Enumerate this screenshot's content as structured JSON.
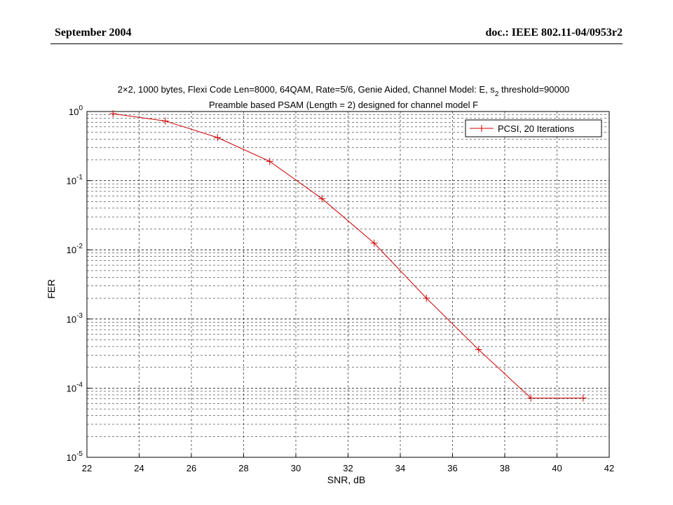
{
  "header": {
    "date": "September 2004",
    "doc_id": "doc.: IEEE 802.11-04/0953r2"
  },
  "chart_data": {
    "type": "line",
    "title_line1": "2×2, 1000 bytes, Flexi Code Len=8000, 64QAM, Rate=5/6, Genie Aided, Channel Model: E, s",
    "title_line1_sub": "2",
    "title_line1_tail": " threshold=90000",
    "title_line2": "Preamble based PSAM (Length = 2) designed for channel model F",
    "xlabel": "SNR, dB",
    "ylabel": "FER",
    "xlim": [
      22,
      42
    ],
    "ylim": [
      1e-05,
      1
    ],
    "yscale": "log",
    "grid": true,
    "x_ticks": [
      22,
      24,
      26,
      28,
      30,
      32,
      34,
      36,
      38,
      40,
      42
    ],
    "y_tick_exponents": [
      0,
      -1,
      -2,
      -3,
      -4,
      -5
    ],
    "y_tick_base": "10",
    "legend_position": "top-right",
    "series_color": "#cc0000",
    "series": [
      {
        "name": "PCSI, 20 Iterations",
        "x": [
          23,
          25,
          27,
          29,
          31,
          33,
          35,
          37,
          39,
          41
        ],
        "y": [
          0.93,
          0.73,
          0.42,
          0.19,
          0.055,
          0.0125,
          0.002,
          0.00036,
          7.2e-05,
          7.2e-05
        ]
      }
    ]
  }
}
